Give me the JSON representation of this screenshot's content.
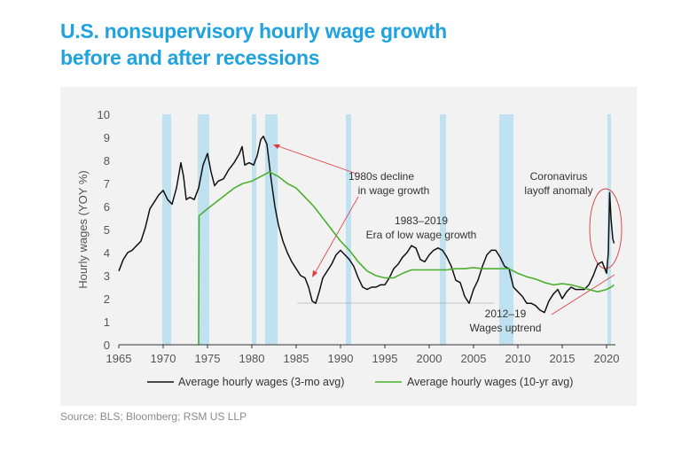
{
  "title_line1": "U.S. nonsupervisory hourly wage growth",
  "title_line2": "before and after recessions",
  "source": "Source: BLS; Bloomberg; RSM US LLP",
  "colors": {
    "title": "#1fa2e0",
    "recession": "#bfe1f0",
    "line_3mo": "#111111",
    "line_10yr": "#4caf2e",
    "annot_red": "#e0393e"
  },
  "chart_data": {
    "type": "line",
    "xlabel": "",
    "ylabel": "Hourly wages (YOY %)",
    "xlim": [
      1965,
      2021
    ],
    "ylim": [
      0,
      10
    ],
    "x_ticks": [
      "1965",
      "1970",
      "1975",
      "1980",
      "1985",
      "1990",
      "1995",
      "2000",
      "2005",
      "2010",
      "2015",
      "2020"
    ],
    "y_ticks": [
      "0",
      "1",
      "2",
      "3",
      "4",
      "5",
      "6",
      "7",
      "8",
      "9",
      "10"
    ],
    "grid": false,
    "legend": "bottom",
    "recessions": [
      [
        1969.9,
        1970.9
      ],
      [
        1973.9,
        1975.2
      ],
      [
        1980.0,
        1980.5
      ],
      [
        1981.5,
        1982.9
      ],
      [
        1990.6,
        1991.2
      ],
      [
        2001.2,
        2001.9
      ],
      [
        2007.9,
        2009.5
      ],
      [
        2020.1,
        2020.5
      ]
    ],
    "series": [
      {
        "name": "Average hourly wages (3-mo avg)",
        "color": "#111111",
        "points": [
          [
            1965.0,
            3.2
          ],
          [
            1965.5,
            3.7
          ],
          [
            1966.0,
            4.0
          ],
          [
            1966.5,
            4.1
          ],
          [
            1967.0,
            4.3
          ],
          [
            1967.5,
            4.5
          ],
          [
            1968.0,
            5.1
          ],
          [
            1968.5,
            5.9
          ],
          [
            1969.0,
            6.2
          ],
          [
            1969.5,
            6.5
          ],
          [
            1970.0,
            6.7
          ],
          [
            1970.5,
            6.3
          ],
          [
            1971.0,
            6.1
          ],
          [
            1971.5,
            6.8
          ],
          [
            1972.0,
            7.9
          ],
          [
            1972.3,
            7.3
          ],
          [
            1972.6,
            6.3
          ],
          [
            1973.0,
            6.4
          ],
          [
            1973.5,
            6.3
          ],
          [
            1974.0,
            6.8
          ],
          [
            1974.5,
            7.8
          ],
          [
            1975.0,
            8.3
          ],
          [
            1975.4,
            7.5
          ],
          [
            1975.8,
            6.9
          ],
          [
            1976.2,
            7.1
          ],
          [
            1976.8,
            7.2
          ],
          [
            1977.4,
            7.6
          ],
          [
            1978.0,
            7.9
          ],
          [
            1978.6,
            8.3
          ],
          [
            1978.9,
            8.6
          ],
          [
            1979.2,
            7.8
          ],
          [
            1979.7,
            7.9
          ],
          [
            1980.2,
            7.8
          ],
          [
            1980.6,
            8.2
          ],
          [
            1981.0,
            8.9
          ],
          [
            1981.3,
            9.05
          ],
          [
            1981.7,
            8.7
          ],
          [
            1982.2,
            7.1
          ],
          [
            1982.6,
            6.0
          ],
          [
            1983.0,
            5.2
          ],
          [
            1983.5,
            4.5
          ],
          [
            1984.0,
            4.0
          ],
          [
            1984.5,
            3.6
          ],
          [
            1985.0,
            3.3
          ],
          [
            1985.5,
            3.0
          ],
          [
            1986.0,
            2.9
          ],
          [
            1986.4,
            2.5
          ],
          [
            1986.8,
            1.9
          ],
          [
            1987.2,
            1.8
          ],
          [
            1987.6,
            2.3
          ],
          [
            1988.0,
            2.9
          ],
          [
            1988.5,
            3.2
          ],
          [
            1989.0,
            3.5
          ],
          [
            1989.5,
            3.9
          ],
          [
            1990.0,
            4.1
          ],
          [
            1990.5,
            3.9
          ],
          [
            1991.0,
            3.7
          ],
          [
            1991.5,
            3.4
          ],
          [
            1992.0,
            2.9
          ],
          [
            1992.5,
            2.5
          ],
          [
            1993.0,
            2.4
          ],
          [
            1993.5,
            2.5
          ],
          [
            1994.0,
            2.5
          ],
          [
            1994.5,
            2.6
          ],
          [
            1995.0,
            2.6
          ],
          [
            1995.5,
            2.9
          ],
          [
            1996.0,
            3.3
          ],
          [
            1996.5,
            3.5
          ],
          [
            1997.0,
            3.8
          ],
          [
            1997.5,
            4.0
          ],
          [
            1998.0,
            4.3
          ],
          [
            1998.5,
            4.2
          ],
          [
            1999.0,
            3.7
          ],
          [
            1999.5,
            3.6
          ],
          [
            2000.0,
            3.9
          ],
          [
            2000.5,
            4.1
          ],
          [
            2001.0,
            4.2
          ],
          [
            2001.5,
            4.1
          ],
          [
            2002.0,
            3.8
          ],
          [
            2002.5,
            3.4
          ],
          [
            2003.0,
            2.8
          ],
          [
            2003.5,
            2.7
          ],
          [
            2004.0,
            2.1
          ],
          [
            2004.5,
            1.8
          ],
          [
            2005.0,
            2.4
          ],
          [
            2005.5,
            2.8
          ],
          [
            2006.0,
            3.4
          ],
          [
            2006.5,
            3.9
          ],
          [
            2007.0,
            4.1
          ],
          [
            2007.5,
            4.1
          ],
          [
            2008.0,
            3.8
          ],
          [
            2008.5,
            3.4
          ],
          [
            2009.0,
            3.3
          ],
          [
            2009.5,
            2.5
          ],
          [
            2010.0,
            2.3
          ],
          [
            2010.5,
            2.1
          ],
          [
            2011.0,
            1.8
          ],
          [
            2011.5,
            1.8
          ],
          [
            2012.0,
            1.7
          ],
          [
            2012.5,
            1.5
          ],
          [
            2013.0,
            1.4
          ],
          [
            2013.5,
            1.9
          ],
          [
            2014.0,
            2.2
          ],
          [
            2014.5,
            2.4
          ],
          [
            2015.0,
            2.0
          ],
          [
            2015.5,
            2.3
          ],
          [
            2016.0,
            2.5
          ],
          [
            2016.5,
            2.4
          ],
          [
            2017.0,
            2.4
          ],
          [
            2017.5,
            2.4
          ],
          [
            2018.0,
            2.6
          ],
          [
            2018.5,
            3.0
          ],
          [
            2019.0,
            3.5
          ],
          [
            2019.5,
            3.6
          ],
          [
            2020.0,
            3.1
          ],
          [
            2020.2,
            4.0
          ],
          [
            2020.35,
            6.6
          ],
          [
            2020.5,
            5.5
          ],
          [
            2020.7,
            4.6
          ],
          [
            2020.85,
            4.4
          ]
        ]
      },
      {
        "name": "Average hourly wages (10-yr avg)",
        "color": "#4caf2e",
        "points": [
          [
            1974.0,
            0.0
          ],
          [
            1974.05,
            5.6
          ],
          [
            1975.0,
            5.9
          ],
          [
            1976.0,
            6.2
          ],
          [
            1977.0,
            6.5
          ],
          [
            1978.0,
            6.8
          ],
          [
            1979.0,
            7.0
          ],
          [
            1980.0,
            7.1
          ],
          [
            1981.0,
            7.3
          ],
          [
            1982.0,
            7.5
          ],
          [
            1983.0,
            7.3
          ],
          [
            1984.0,
            7.0
          ],
          [
            1985.0,
            6.8
          ],
          [
            1986.0,
            6.4
          ],
          [
            1987.0,
            6.0
          ],
          [
            1988.0,
            5.5
          ],
          [
            1989.0,
            5.0
          ],
          [
            1990.0,
            4.5
          ],
          [
            1991.0,
            4.1
          ],
          [
            1992.0,
            3.6
          ],
          [
            1993.0,
            3.2
          ],
          [
            1994.0,
            3.0
          ],
          [
            1995.0,
            2.9
          ],
          [
            1996.0,
            2.9
          ],
          [
            1997.0,
            3.1
          ],
          [
            1998.0,
            3.25
          ],
          [
            1999.0,
            3.25
          ],
          [
            2000.0,
            3.25
          ],
          [
            2001.0,
            3.25
          ],
          [
            2002.0,
            3.25
          ],
          [
            2003.0,
            3.3
          ],
          [
            2004.0,
            3.3
          ],
          [
            2005.0,
            3.35
          ],
          [
            2006.0,
            3.3
          ],
          [
            2007.0,
            3.3
          ],
          [
            2008.0,
            3.3
          ],
          [
            2009.0,
            3.3
          ],
          [
            2010.0,
            3.1
          ],
          [
            2011.0,
            2.95
          ],
          [
            2012.0,
            2.85
          ],
          [
            2013.0,
            2.7
          ],
          [
            2014.0,
            2.6
          ],
          [
            2015.0,
            2.65
          ],
          [
            2016.0,
            2.6
          ],
          [
            2017.0,
            2.5
          ],
          [
            2018.0,
            2.4
          ],
          [
            2019.0,
            2.3
          ],
          [
            2020.0,
            2.4
          ],
          [
            2020.5,
            2.5
          ],
          [
            2020.85,
            2.6
          ]
        ]
      }
    ],
    "annotations": [
      {
        "id": "decline",
        "line1": "1980s decline",
        "line2": "in wage growth"
      },
      {
        "id": "era",
        "line1": "1983–2019",
        "line2": "Era of low wage growth"
      },
      {
        "id": "covid",
        "line1": "Coronavirus",
        "line2": "layoff anomaly"
      },
      {
        "id": "uptrend",
        "line1": "2012–19",
        "line2": "Wages uptrend"
      }
    ]
  }
}
